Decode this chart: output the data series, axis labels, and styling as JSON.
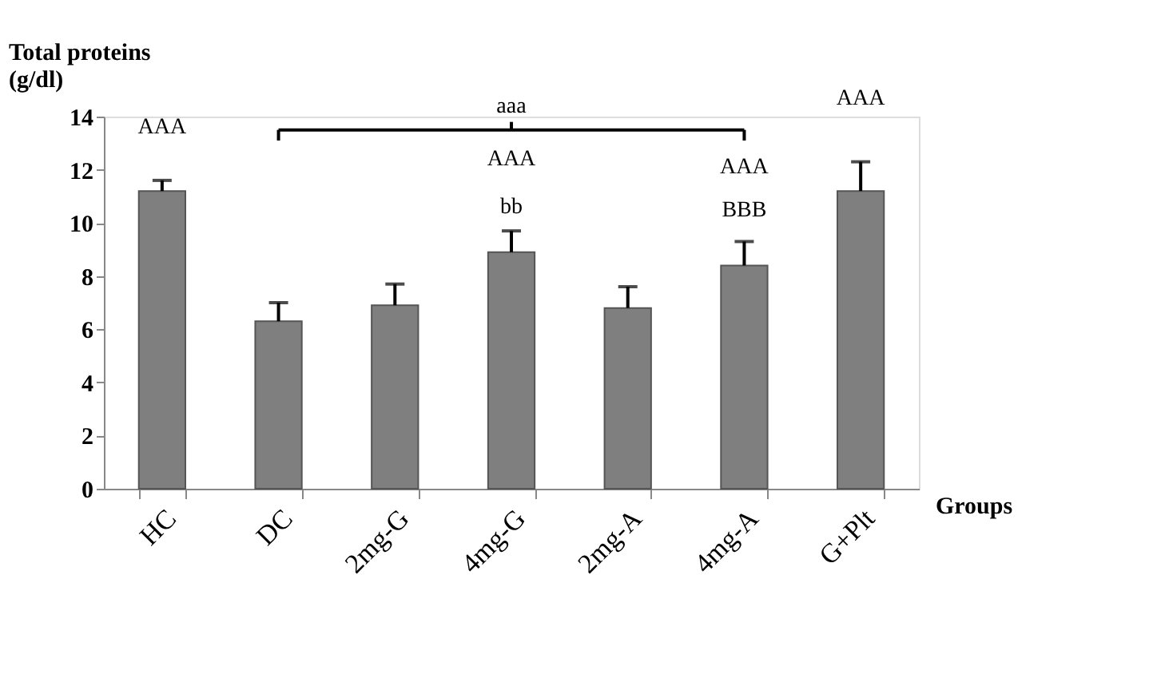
{
  "chart_data": {
    "type": "bar",
    "ylabel": "Total proteins\n(g/dl)",
    "xlabel": "Groups",
    "categories": [
      "HC",
      "DC",
      "2mg-G",
      "4mg-G",
      "2mg-A",
      "4mg-A",
      "G+Plt"
    ],
    "values": [
      11.2,
      6.3,
      6.9,
      8.9,
      6.8,
      8.4,
      11.2
    ],
    "errors": [
      [
        11.2,
        11.6
      ],
      [
        6.3,
        7.0
      ],
      [
        6.9,
        7.7
      ],
      [
        8.9,
        9.7
      ],
      [
        6.8,
        7.6
      ],
      [
        8.4,
        9.3
      ],
      [
        11.2,
        12.3
      ]
    ],
    "color": "#7f7f7f",
    "ylim": [
      0,
      14
    ],
    "yticks": [
      0,
      2,
      4,
      6,
      8,
      10,
      12,
      14
    ],
    "grid": false,
    "annotations": [
      "AAA",
      "aaa",
      "AAA",
      "bb",
      "AAA",
      "BBB",
      "AAA"
    ]
  }
}
